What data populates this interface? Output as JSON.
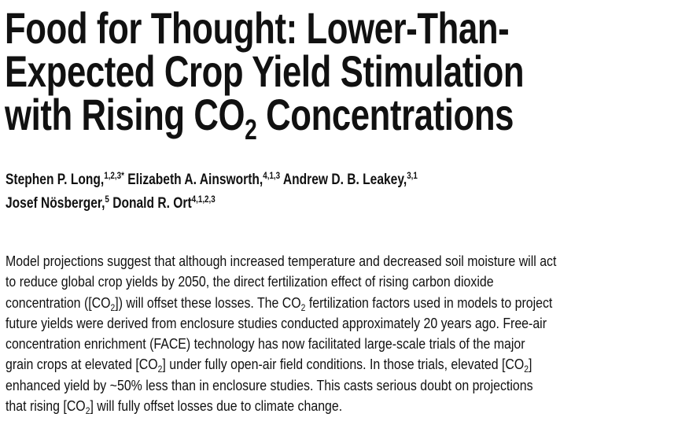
{
  "title": {
    "line1": "Food for Thought: Lower-Than-",
    "line2": "Expected Crop Yield Stimulation",
    "line3a": "with Rising CO",
    "line3sub": "2",
    "line3b": " Concentrations"
  },
  "authors": [
    {
      "name": "Stephen P. Long,",
      "sup": "1,2,3*"
    },
    {
      "name": " Elizabeth A. Ainsworth,",
      "sup": "4,1,3"
    },
    {
      "name": " Andrew D. B. Leakey,",
      "sup": "3,1"
    },
    {
      "name": "Josef Nösberger,",
      "sup": "5"
    },
    {
      "name": " Donald R. Ort",
      "sup": "4,1,2,3"
    }
  ],
  "abstract": {
    "lines": [
      [
        {
          "t": "Model projections suggest that although increased temperature and decreased soil moisture will act"
        }
      ],
      [
        {
          "t": "to reduce global crop yields by 2050, the direct fertilization effect of rising carbon dioxide"
        }
      ],
      [
        {
          "t": "concentration ([CO"
        },
        {
          "s": "2"
        },
        {
          "t": "]) will offset these losses. The CO"
        },
        {
          "s": "2"
        },
        {
          "t": " fertilization factors used in models to project"
        }
      ],
      [
        {
          "t": "future yields were derived from enclosure studies conducted approximately 20 years ago. Free-air"
        }
      ],
      [
        {
          "t": "concentration enrichment (FACE) technology has now facilitated large-scale trials of the major"
        }
      ],
      [
        {
          "t": "grain crops at elevated [CO"
        },
        {
          "s": "2"
        },
        {
          "t": "] under fully open-air field conditions. In those trials, elevated [CO"
        },
        {
          "s": "2"
        },
        {
          "t": "]"
        }
      ],
      [
        {
          "t": "enhanced yield by ~50% less than in enclosure studies. This casts serious doubt on projections"
        }
      ],
      [
        {
          "t": "that rising [CO"
        },
        {
          "s": "2"
        },
        {
          "t": "] will fully offset losses due to climate change."
        }
      ]
    ]
  }
}
